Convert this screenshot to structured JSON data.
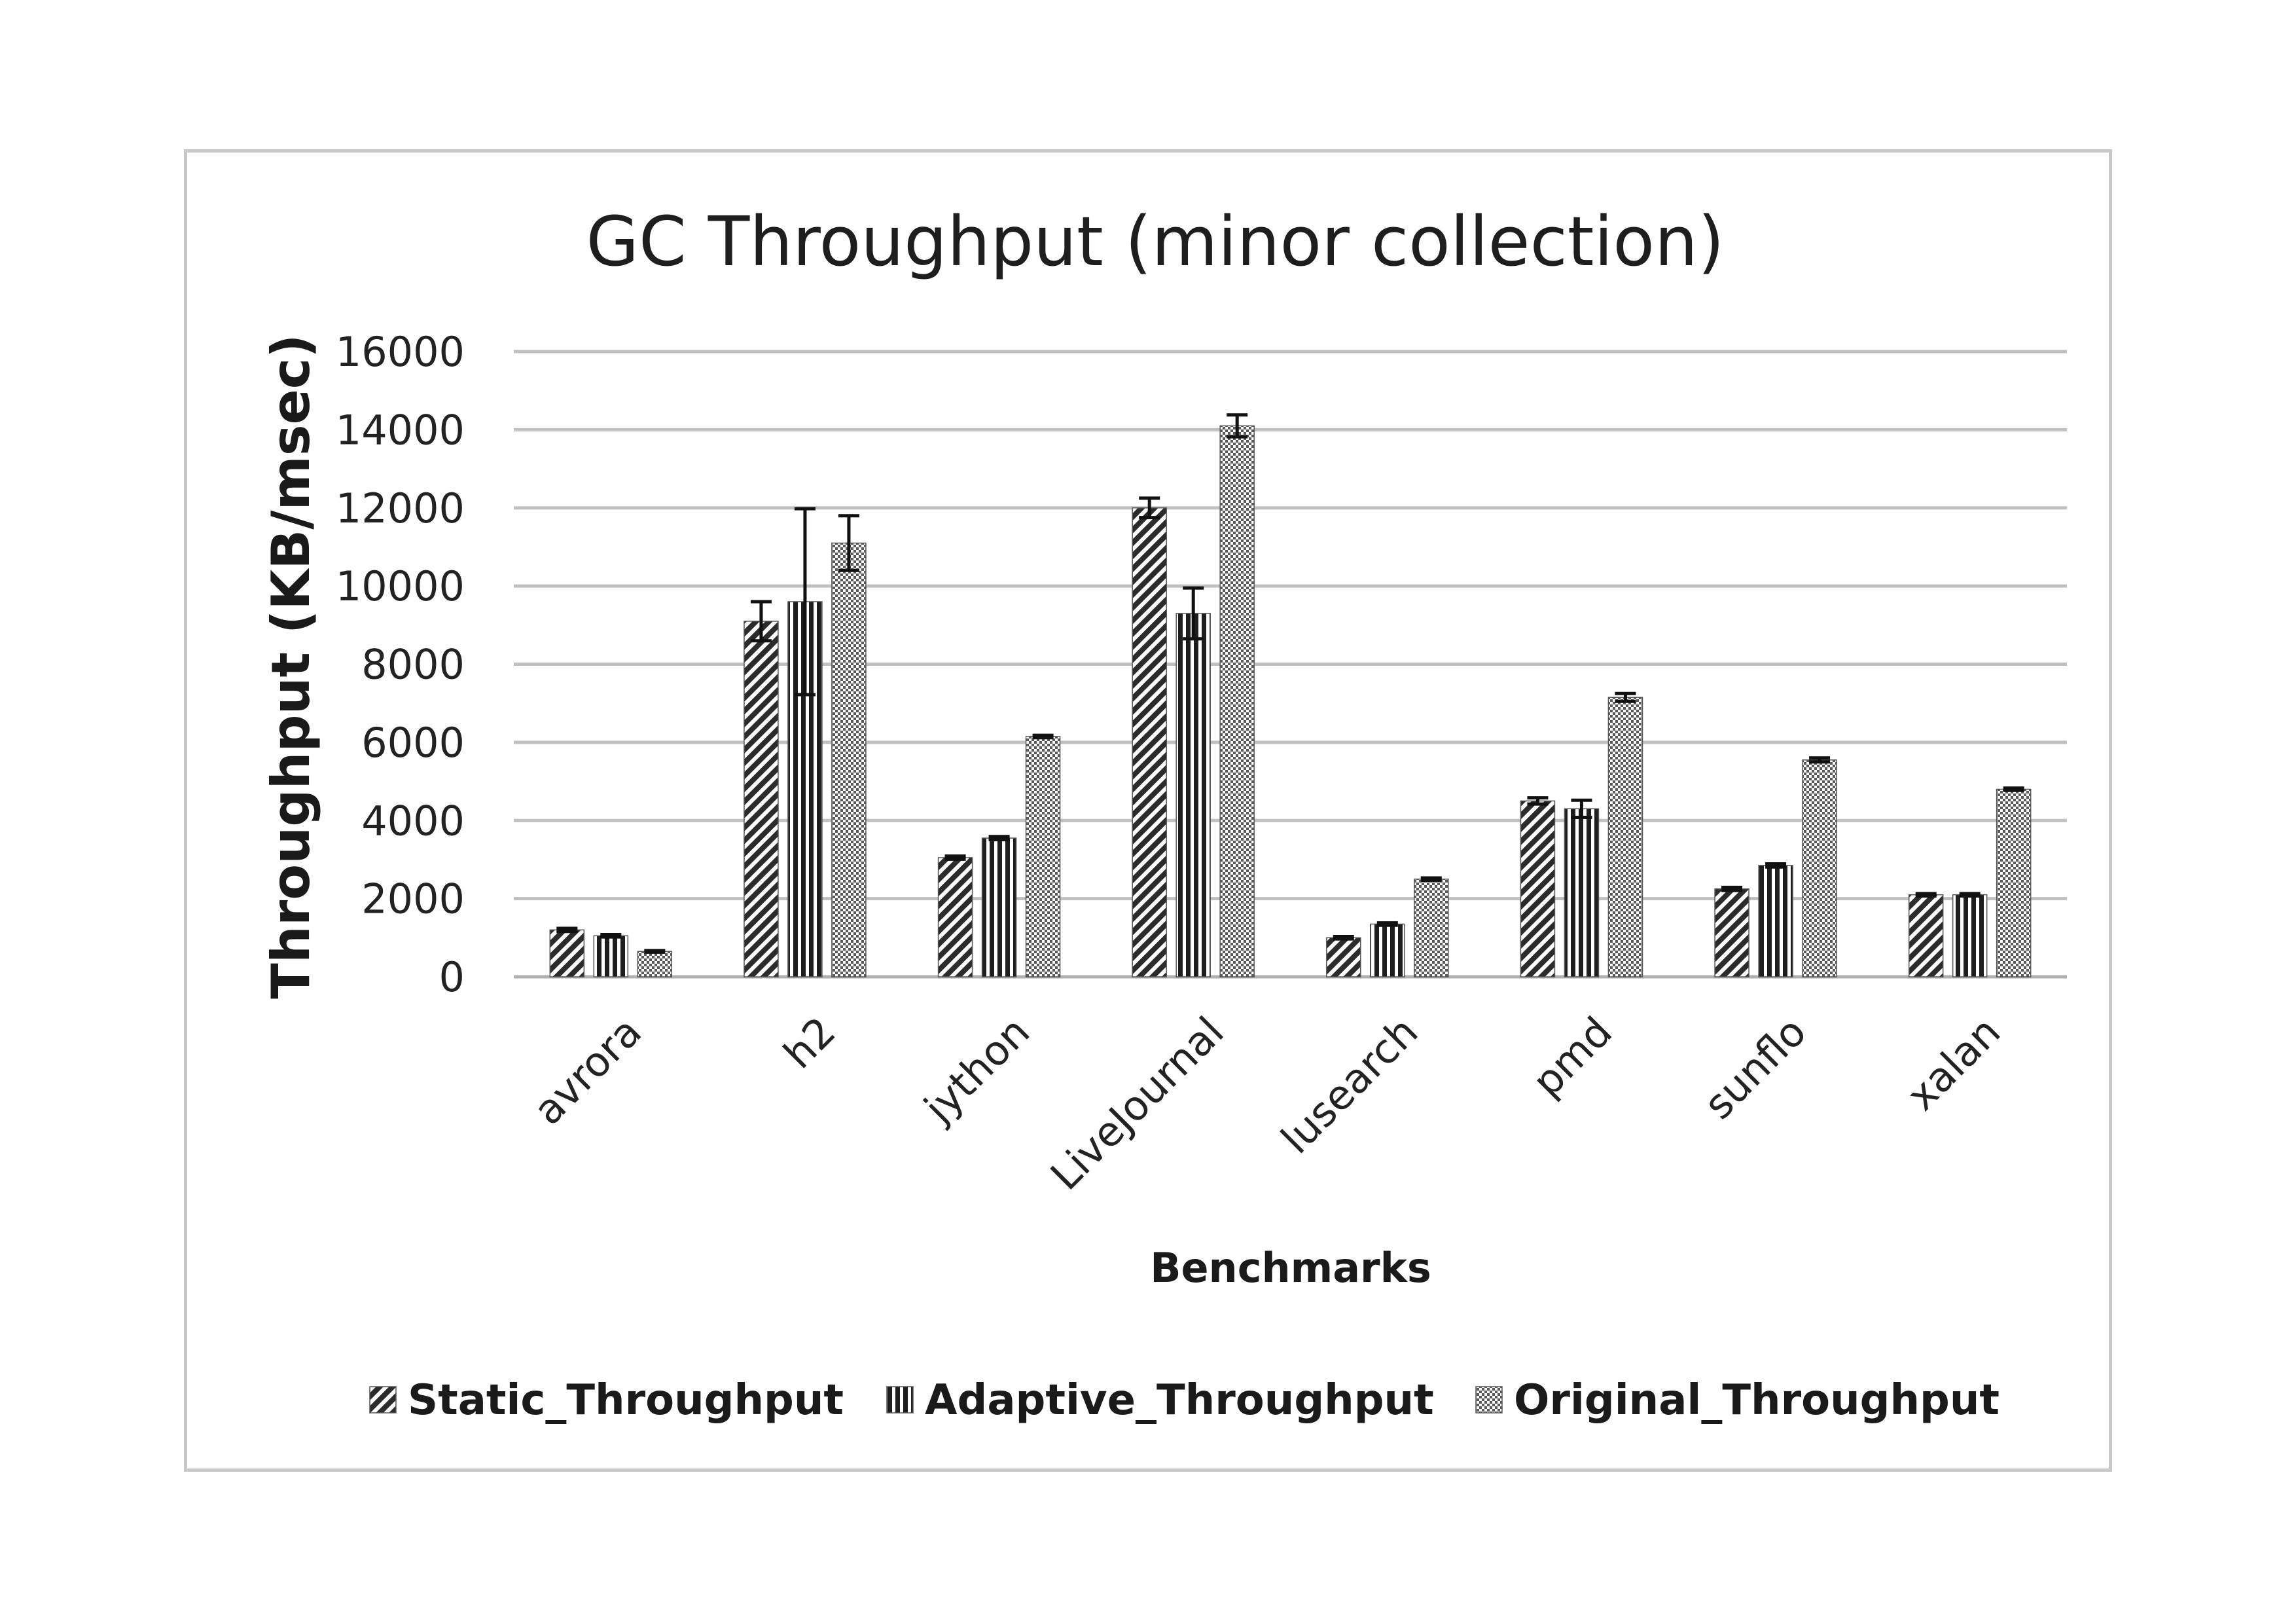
{
  "chart_data": {
    "type": "bar",
    "title": "GC Throughput (minor collection)",
    "xlabel": "Benchmarks",
    "ylabel": "Throughput (KB/msec)",
    "ylim": [
      0,
      16000
    ],
    "yticks": [
      0,
      2000,
      4000,
      6000,
      8000,
      10000,
      12000,
      14000,
      16000
    ],
    "grid": true,
    "legend_position": "bottom",
    "categories": [
      "avrora",
      "h2",
      "jython",
      "LiveJournal",
      "lusearch",
      "pmd",
      "sunflo",
      "xalan"
    ],
    "series": [
      {
        "name": "Static_Throughput",
        "pattern": "diagonal-hatch",
        "values": [
          1200,
          9100,
          3050,
          12000,
          1000,
          4500,
          2250,
          2100
        ],
        "error": [
          40,
          500,
          40,
          250,
          30,
          80,
          40,
          30
        ]
      },
      {
        "name": "Adaptive_Throughput",
        "pattern": "vertical-hatch",
        "values": [
          1050,
          9600,
          3550,
          9300,
          1350,
          4300,
          2850,
          2100
        ],
        "error": [
          30,
          2380,
          40,
          650,
          30,
          220,
          40,
          30
        ]
      },
      {
        "name": "Original_Throughput",
        "pattern": "dotted",
        "values": [
          650,
          11100,
          6150,
          14100,
          2500,
          7150,
          5550,
          4800
        ],
        "error": [
          20,
          700,
          30,
          280,
          30,
          100,
          50,
          30
        ]
      }
    ],
    "colors": {
      "bar_fill": "#2b2b2b",
      "grid": "#c0c0c0",
      "frame": "#c8c8c8"
    }
  }
}
